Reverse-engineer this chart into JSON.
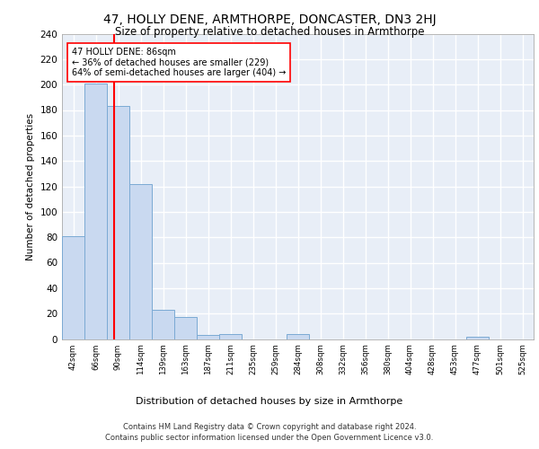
{
  "title": "47, HOLLY DENE, ARMTHORPE, DONCASTER, DN3 2HJ",
  "subtitle": "Size of property relative to detached houses in Armthorpe",
  "xlabel": "Distribution of detached houses by size in Armthorpe",
  "ylabel": "Number of detached properties",
  "bin_labels": [
    "42sqm",
    "66sqm",
    "90sqm",
    "114sqm",
    "139sqm",
    "163sqm",
    "187sqm",
    "211sqm",
    "235sqm",
    "259sqm",
    "284sqm",
    "308sqm",
    "332sqm",
    "356sqm",
    "380sqm",
    "404sqm",
    "428sqm",
    "453sqm",
    "477sqm",
    "501sqm",
    "525sqm"
  ],
  "bar_values": [
    81,
    201,
    183,
    122,
    23,
    17,
    3,
    4,
    0,
    0,
    4,
    0,
    0,
    0,
    0,
    0,
    0,
    0,
    2,
    0,
    0
  ],
  "bar_color": "#c9d9f0",
  "bar_edge_color": "#7baad4",
  "vline_color": "red",
  "annotation_text": "47 HOLLY DENE: 86sqm\n← 36% of detached houses are smaller (229)\n64% of semi-detached houses are larger (404) →",
  "ylim": [
    0,
    240
  ],
  "yticks": [
    0,
    20,
    40,
    60,
    80,
    100,
    120,
    140,
    160,
    180,
    200,
    220,
    240
  ],
  "bg_color": "#e8eef7",
  "grid_color": "white",
  "footer": "Contains HM Land Registry data © Crown copyright and database right 2024.\nContains public sector information licensed under the Open Government Licence v3.0."
}
